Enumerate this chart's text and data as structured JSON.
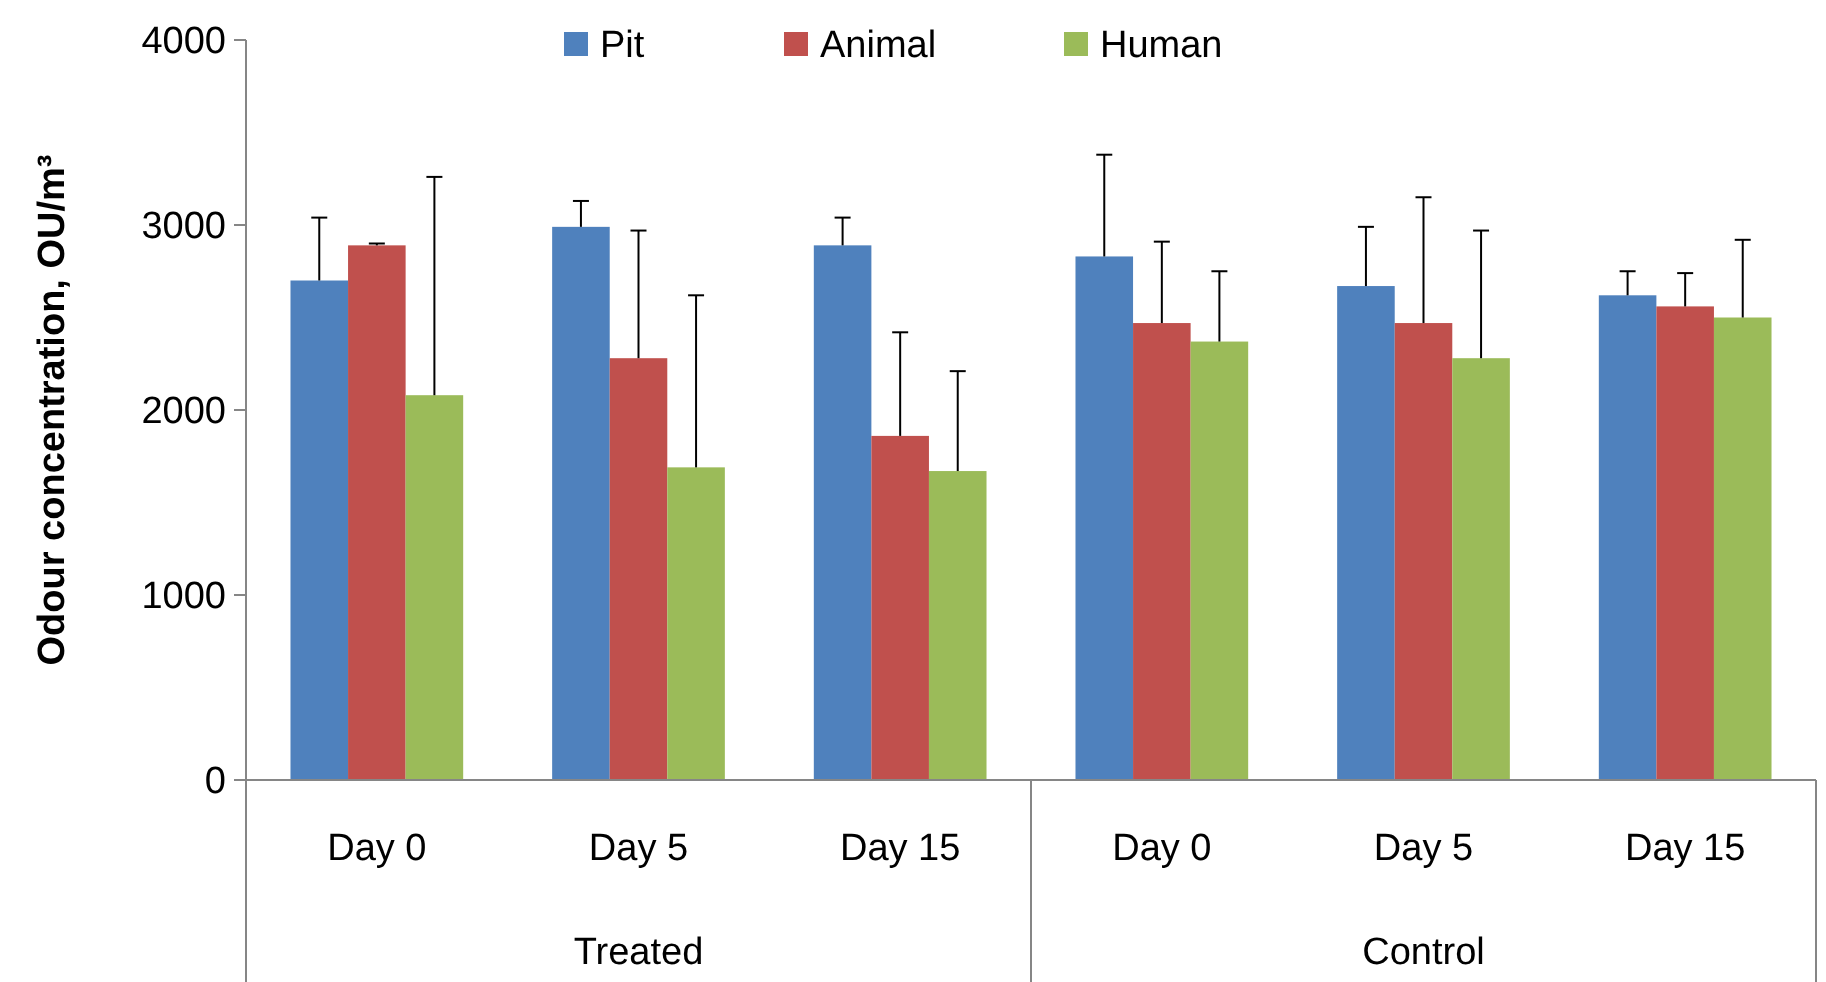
{
  "chart_data": {
    "type": "bar",
    "ylabel": "Odour concentration, OU/m³",
    "categories": [
      "Day 0",
      "Day 5",
      "Day 15",
      "Day 0",
      "Day 5",
      "Day 15"
    ],
    "series": [
      {
        "name": "Pit",
        "color": "#4f81bd",
        "values": [
          2700,
          2990,
          2890,
          2830,
          2670,
          2620
        ],
        "errors": [
          [
            2700,
            3040
          ],
          [
            2990,
            3130
          ],
          [
            2890,
            3040
          ],
          [
            2830,
            3380
          ],
          [
            2670,
            2990
          ],
          [
            2620,
            2750
          ]
        ]
      },
      {
        "name": "Animal",
        "color": "#c0504d",
        "values": [
          2890,
          2280,
          1860,
          2470,
          2470,
          2560
        ],
        "errors": [
          [
            2890,
            2900
          ],
          [
            2280,
            2970
          ],
          [
            1860,
            2420
          ],
          [
            2470,
            2910
          ],
          [
            2470,
            3150
          ],
          [
            2560,
            2740
          ]
        ]
      },
      {
        "name": "Human",
        "color": "#9bbb59",
        "values": [
          2080,
          1690,
          1670,
          2370,
          2280,
          2500
        ],
        "errors": [
          [
            2080,
            3260
          ],
          [
            1690,
            2620
          ],
          [
            1670,
            2210
          ],
          [
            2370,
            2750
          ],
          [
            2280,
            2970
          ],
          [
            2500,
            2920
          ]
        ]
      }
    ],
    "annotations": [
      "Treated",
      "Control"
    ],
    "ylim": [
      0,
      4000
    ],
    "yticks": [
      0,
      1000,
      2000,
      3000,
      4000
    ],
    "grid": false,
    "legend": "top"
  }
}
